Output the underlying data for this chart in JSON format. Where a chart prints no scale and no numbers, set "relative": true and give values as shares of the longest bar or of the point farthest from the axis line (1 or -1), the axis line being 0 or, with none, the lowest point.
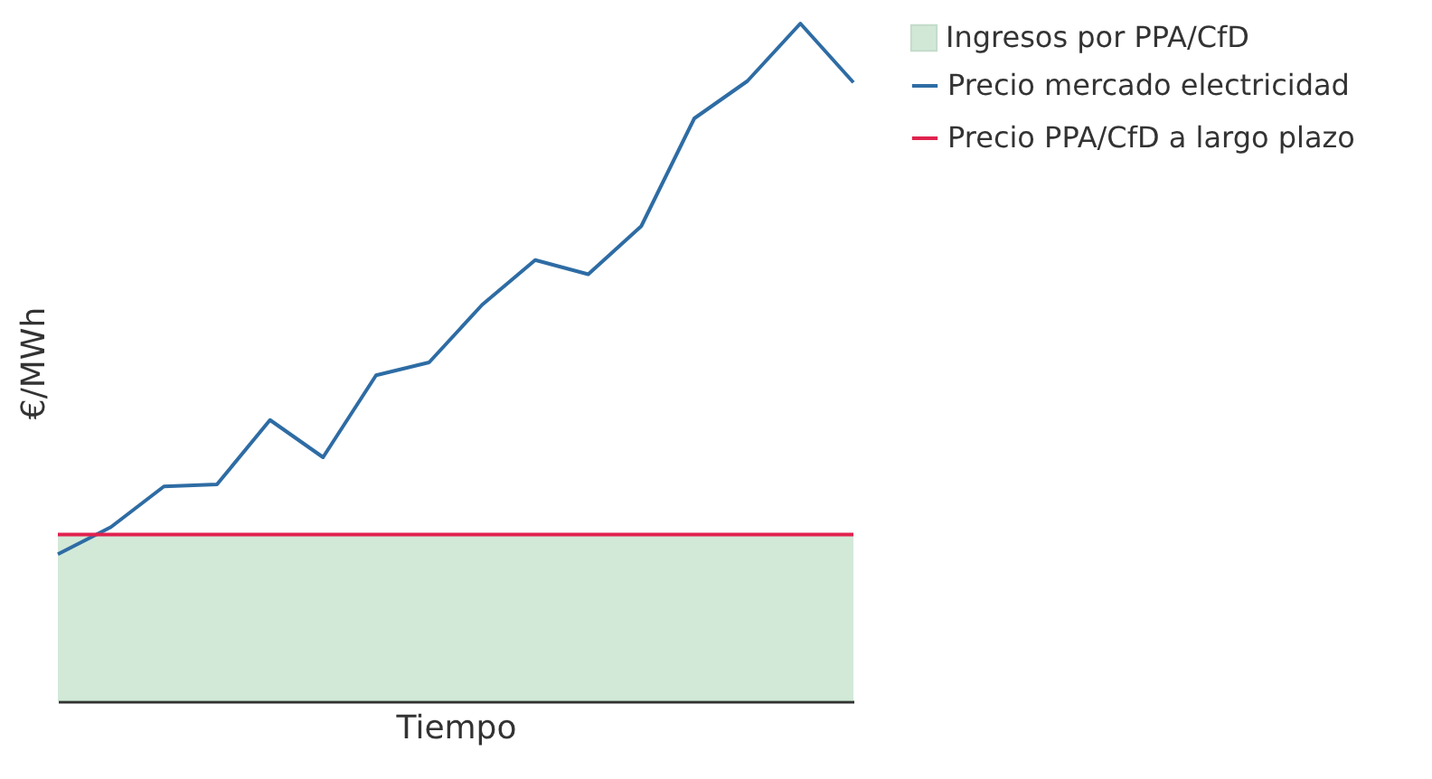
{
  "chart_data": {
    "type": "line",
    "relative": true,
    "xlabel": "Tiempo",
    "ylabel": "€/MWh",
    "legend": "right",
    "categories": [
      null,
      null,
      null,
      null,
      null,
      null,
      null,
      null,
      null,
      null,
      null,
      null,
      null,
      null,
      null,
      null
    ],
    "series": [
      {
        "name": "Precio mercado electricidad",
        "color": "#2e6ca4",
        "values": [
          0.217,
          0.257,
          0.317,
          0.32,
          0.415,
          0.36,
          0.481,
          0.5,
          0.585,
          0.651,
          0.63,
          0.701,
          0.86,
          0.915,
          1,
          0.913
        ]
      },
      {
        "name": "Precio PPA/CfD a largo plazo",
        "color": "#e0224e",
        "values": [
          0.246,
          0.246,
          0.246,
          0.246,
          0.246,
          0.246,
          0.246,
          0.246,
          0.246,
          0.246,
          0.246,
          0.246,
          0.246,
          0.246,
          0.246,
          0.246
        ]
      },
      {
        "name": "Ingresos por PPA/CfD",
        "type": "area",
        "color": "#7fbf8f",
        "values": [
          0.246,
          0.246,
          0.246,
          0.246,
          0.246,
          0.246,
          0.246,
          0.246,
          0.246,
          0.246,
          0.246,
          0.246,
          0.246,
          0.246,
          0.246,
          0.246
        ]
      }
    ]
  }
}
